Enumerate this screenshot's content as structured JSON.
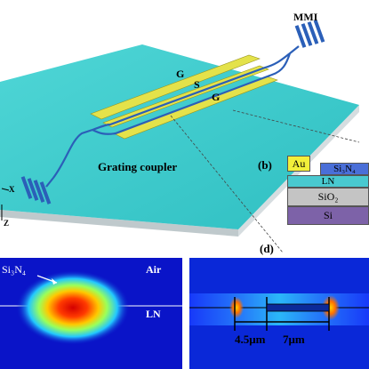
{
  "figure_a": {
    "mmi_label": "MMI",
    "electrode_g_top": "G",
    "electrode_s": "S",
    "electrode_g_bottom": "G",
    "grating_label": "Grating coupler",
    "axis_x": "X",
    "axis_z": "Z"
  },
  "figure_b": {
    "panel_label": "(b)",
    "layers": {
      "au": "Au",
      "si3n4": "Si₃N₄",
      "ln": "LN",
      "sio2": "SiO₂",
      "si": "Si"
    }
  },
  "figure_c": {
    "si3n4_label": "Si₃N₄",
    "air_label": "Air",
    "ln_label": "LN"
  },
  "figure_d": {
    "panel_label": "(d)",
    "gap_label": "4.5μm",
    "width_label": "7μm"
  },
  "colors": {
    "substrate_top": "#33c8c8",
    "waveguide": "#2b5fb8",
    "electrode": "#e4e24a",
    "field_background": "#0a14c8"
  }
}
